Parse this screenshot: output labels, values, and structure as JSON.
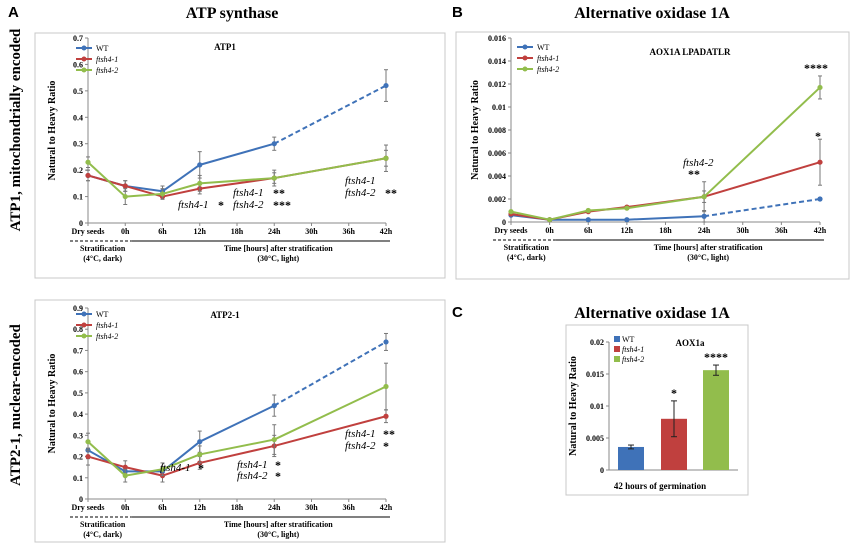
{
  "panels": {
    "A": {
      "letter": "A",
      "title": "ATP synthase"
    },
    "B": {
      "letter": "B",
      "title": "Alternative oxidase 1A"
    },
    "C": {
      "letter": "C",
      "title": "Alternative oxidase 1A"
    }
  },
  "row_labels": {
    "top": "ATP1, mitochondrially encoded",
    "bottom": "ATP2-1, nuclear-encoded"
  },
  "ylabel": "Natural to Heavy Ratio",
  "x_categories": [
    "Dry seeds",
    "0h",
    "6h",
    "12h",
    "18h",
    "24h",
    "30h",
    "36h",
    "42h"
  ],
  "x_sub": {
    "strat1": "Stratification",
    "strat2": "(4°C, dark)",
    "time1": "Time [hours] after stratification",
    "time2": "(30°C, light)"
  },
  "legend": {
    "wt": "WT",
    "f1": "ftsh4-1",
    "f2": "ftsh4-2"
  },
  "colors": {
    "wt": "#3f72b8",
    "f1": "#c0403e",
    "f2": "#92bd4c"
  },
  "chart_data": [
    {
      "id": "A1",
      "type": "line",
      "title": "ATP1",
      "ylabel": "Natural to Heavy Ratio",
      "x": [
        0,
        0,
        6,
        12,
        24,
        42
      ],
      "categories": [
        "Dry seeds",
        "0h",
        "6h",
        "12h",
        "18h",
        "24h",
        "30h",
        "36h",
        "42h"
      ],
      "ylim": [
        0,
        0.7
      ],
      "yticks": [
        "0",
        "0.1",
        "0.2",
        "0.3",
        "0.4",
        "0.5",
        "0.6",
        "0.7"
      ],
      "series": [
        {
          "name": "WT",
          "values": [
            0.18,
            0.14,
            0.12,
            0.22,
            0.3,
            0.52
          ],
          "err": [
            0.02,
            0.02,
            0.02,
            0.05,
            0.025,
            0.06
          ]
        },
        {
          "name": "ftsh4-1",
          "values": [
            0.18,
            0.14,
            0.1,
            0.13,
            0.17,
            0.245
          ],
          "err": [
            0.02,
            0.02,
            0.01,
            0.02,
            0.02,
            0.03
          ]
        },
        {
          "name": "ftsh4-2",
          "values": [
            0.23,
            0.1,
            0.11,
            0.15,
            0.17,
            0.245
          ],
          "err": [
            0.02,
            0.03,
            0.02,
            0.03,
            0.03,
            0.05
          ]
        }
      ],
      "annotations": [
        {
          "label": "ftsh4-1",
          "stars": "*"
        },
        {
          "label": "ftsh4-1",
          "stars": "**"
        },
        {
          "label": "ftsh4-2",
          "stars": "***"
        },
        {
          "label": "ftsh4-1",
          "stars": ""
        },
        {
          "label": "ftsh4-2",
          "stars": "**"
        }
      ]
    },
    {
      "id": "A2",
      "type": "line",
      "title": "ATP2-1",
      "ylabel": "Natural to Heavy Ratio",
      "ylim": [
        0,
        0.9
      ],
      "yticks": [
        "0",
        "0.1",
        "0.2",
        "0.3",
        "0.4",
        "0.5",
        "0.6",
        "0.7",
        "0.8",
        "0.9"
      ],
      "series": [
        {
          "name": "WT",
          "values": [
            0.23,
            0.13,
            0.13,
            0.27,
            0.44,
            0.74
          ],
          "err": [
            0.04,
            0.02,
            0.02,
            0.05,
            0.05,
            0.04
          ]
        },
        {
          "name": "ftsh4-1",
          "values": [
            0.2,
            0.15,
            0.11,
            0.17,
            0.25,
            0.39
          ],
          "err": [
            0.04,
            0.03,
            0.03,
            0.03,
            0.05,
            0.03
          ]
        },
        {
          "name": "ftsh4-2",
          "values": [
            0.27,
            0.11,
            0.14,
            0.21,
            0.28,
            0.53
          ],
          "err": [
            0.04,
            0.03,
            0.03,
            0.04,
            0.07,
            0.11
          ]
        }
      ],
      "annotations": [
        {
          "label": "ftsh4-1",
          "stars": "*"
        },
        {
          "label": "ftsh4-1",
          "stars": "*"
        },
        {
          "label": "ftsh4-2",
          "stars": "*"
        },
        {
          "label": "ftsh4-1",
          "stars": "**"
        },
        {
          "label": "ftsh4-2",
          "stars": "*"
        }
      ]
    },
    {
      "id": "B",
      "type": "line",
      "title": "AOX1A   LPADATLR",
      "ylabel": "Natural to Heavy Ratio",
      "ylim": [
        0,
        0.016
      ],
      "yticks": [
        "0",
        "0.002",
        "0.004",
        "0.006",
        "0.008",
        "0.01",
        "0.012",
        "0.014",
        "0.016"
      ],
      "series": [
        {
          "name": "WT",
          "values": [
            0.0006,
            0.0002,
            0.0002,
            0.0002,
            0.0005,
            0.002
          ],
          "err": [
            0.0001,
            0.0001,
            0.0001,
            0.0001,
            0.0005,
            0.0001
          ]
        },
        {
          "name": "ftsh4-1",
          "values": [
            0.0007,
            0.0002,
            0.0009,
            0.0013,
            0.0022,
            0.0052
          ],
          "err": [
            0.0001,
            0.0001,
            0.0001,
            0.0001,
            0.0005,
            0.002
          ]
        },
        {
          "name": "ftsh4-2",
          "values": [
            0.0009,
            0.0002,
            0.001,
            0.0012,
            0.0022,
            0.0117
          ],
          "err": [
            0.0001,
            0.0001,
            0.0001,
            0.0001,
            0.0013,
            0.001
          ]
        }
      ],
      "annotations": [
        {
          "label": "ftsh4-2",
          "stars": "**"
        },
        {
          "label": "",
          "stars": "****"
        },
        {
          "label": "",
          "stars": "*"
        }
      ]
    },
    {
      "id": "C",
      "type": "bar",
      "title": "AOX1a",
      "ylabel": "Natural to Heavy Ratio",
      "xlabel": "42 hours of germination",
      "categories": [
        "WT",
        "ftsh4-1",
        "ftsh4-2"
      ],
      "values": [
        0.0036,
        0.008,
        0.0156
      ],
      "err": [
        0.0003,
        0.0028,
        0.0008
      ],
      "stars": [
        "",
        "*",
        "****"
      ],
      "ylim": [
        0,
        0.02
      ],
      "yticks": [
        "0",
        "0.005",
        "0.01",
        "0.015",
        "0.02"
      ]
    }
  ]
}
